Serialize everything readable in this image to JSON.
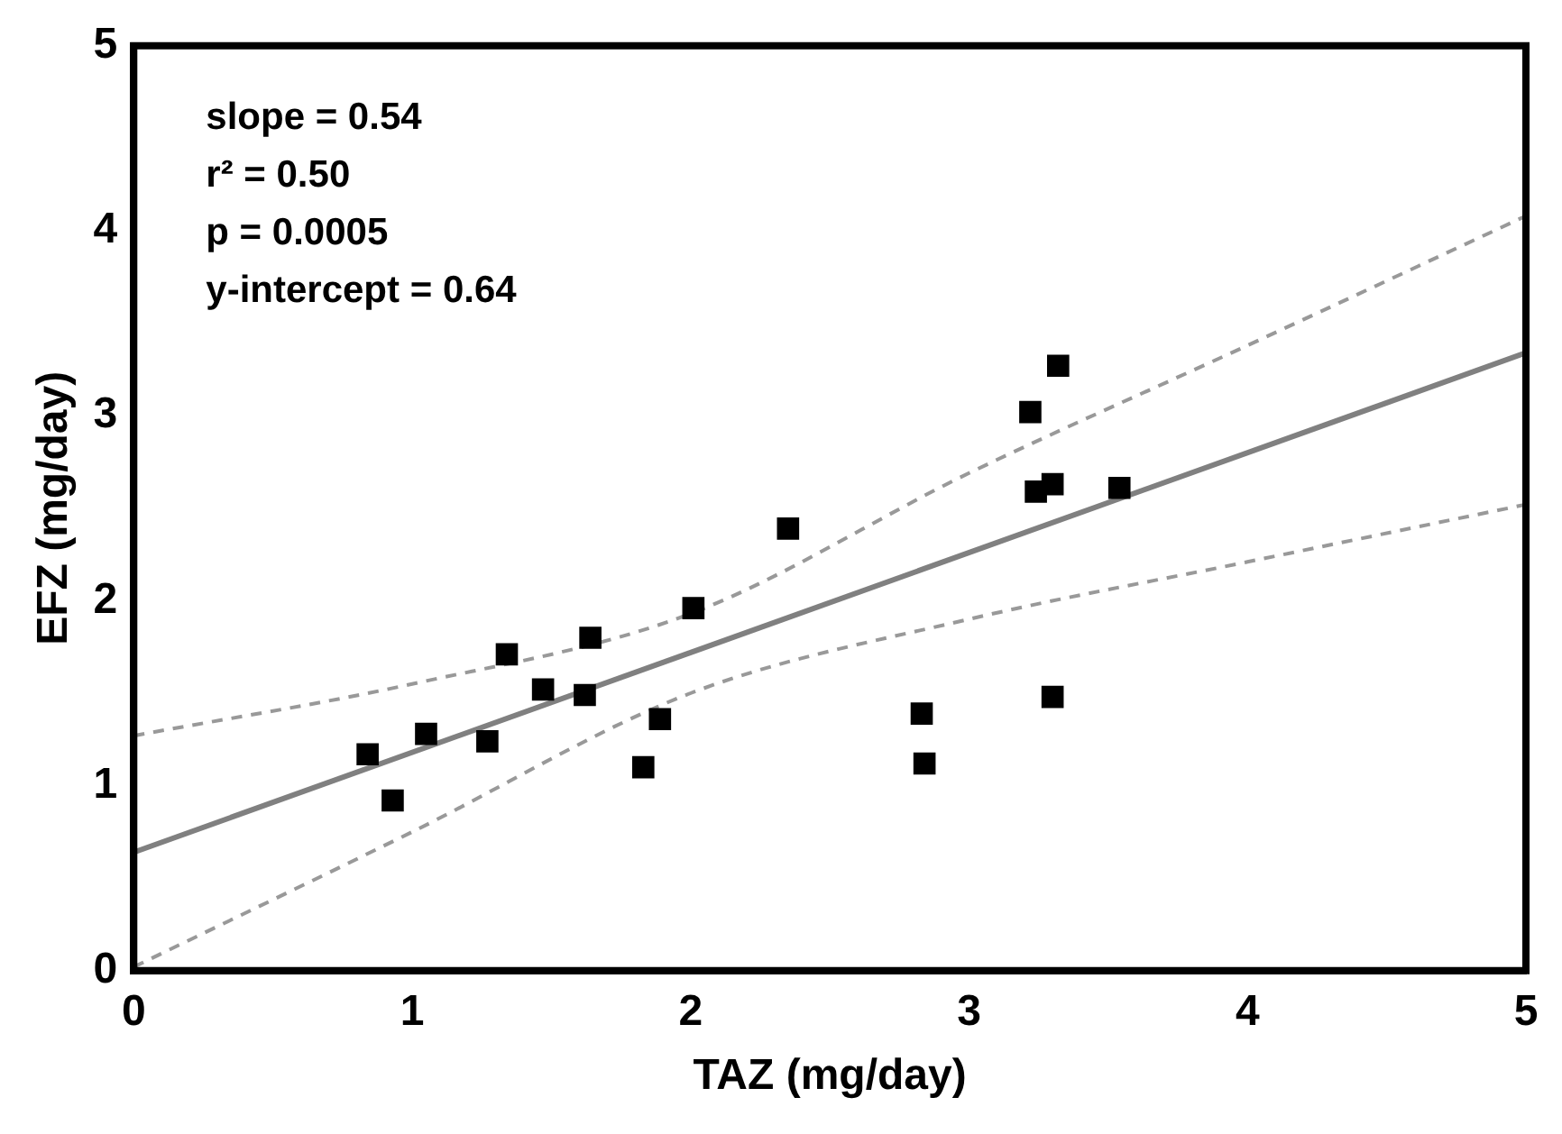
{
  "chart_data": {
    "type": "scatter",
    "xlabel": "TAZ (mg/day)",
    "ylabel": "EFZ (mg/day)",
    "xlim": [
      0,
      5
    ],
    "xticks": [
      0,
      1,
      2,
      3,
      4,
      5
    ],
    "ylim": [
      0,
      5
    ],
    "yticks": [
      0,
      1,
      2,
      3,
      4,
      5
    ],
    "grid": false,
    "legend": false,
    "marker": "square",
    "annotations": [
      "slope = 0.54",
      "r² = 0.50",
      "p = 0.0005",
      "y-intercept = 0.64"
    ],
    "series": [
      {
        "color": "#000000",
        "x": [
          0.84,
          0.93,
          1.05,
          1.27,
          1.34,
          1.47,
          1.62,
          1.64,
          1.83,
          1.89,
          2.01,
          2.35,
          2.83,
          2.84,
          3.22,
          3.24,
          3.3,
          3.32,
          3.3,
          3.54
        ],
        "values": [
          1.17,
          0.92,
          1.28,
          1.24,
          1.71,
          1.52,
          1.49,
          1.8,
          1.1,
          1.36,
          1.96,
          2.39,
          1.39,
          1.12,
          3.02,
          2.59,
          2.63,
          3.27,
          1.48,
          2.61
        ]
      },
      {
        "type": "line",
        "color": "#808080",
        "marker": "none",
        "line_style": "solid",
        "x": [
          0,
          5
        ],
        "values": [
          0.64,
          3.34
        ]
      },
      {
        "type": "line",
        "color": "#999999",
        "marker": "none",
        "line_style": "dashed",
        "x": [
          0,
          1,
          2,
          3,
          4,
          5
        ],
        "values": [
          1.27,
          1.55,
          1.93,
          2.69,
          3.38,
          4.08
        ]
      },
      {
        "type": "line",
        "color": "#999999",
        "marker": "none",
        "line_style": "dashed",
        "x": [
          0,
          1,
          2,
          3,
          4,
          5
        ],
        "values": [
          0.02,
          0.75,
          1.5,
          1.9,
          2.21,
          2.52
        ]
      }
    ]
  }
}
